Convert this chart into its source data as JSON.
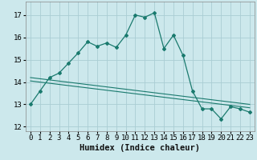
{
  "xlabel": "Humidex (Indice chaleur)",
  "background_color": "#cce8ec",
  "grid_color": "#aacdd4",
  "line_color": "#1a7a6e",
  "xlim": [
    -0.5,
    23.5
  ],
  "ylim": [
    11.8,
    17.6
  ],
  "yticks": [
    12,
    13,
    14,
    15,
    16,
    17
  ],
  "xticks": [
    0,
    1,
    2,
    3,
    4,
    5,
    6,
    7,
    8,
    9,
    10,
    11,
    12,
    13,
    14,
    15,
    16,
    17,
    18,
    19,
    20,
    21,
    22,
    23
  ],
  "curve1_x": [
    0,
    1,
    2,
    3,
    4,
    5,
    6,
    7,
    8,
    9,
    10,
    11,
    12,
    13,
    14,
    15,
    16,
    17,
    18,
    19,
    20,
    21,
    22,
    23
  ],
  "curve1_y": [
    13.0,
    13.6,
    14.2,
    14.4,
    14.85,
    15.3,
    15.8,
    15.6,
    15.75,
    15.55,
    16.1,
    17.0,
    16.9,
    17.1,
    15.5,
    16.1,
    15.2,
    13.6,
    12.8,
    12.8,
    12.35,
    12.9,
    12.8,
    12.65
  ],
  "trend1_start": 14.2,
  "trend1_end": 13.0,
  "trend2_start": 14.05,
  "trend2_end": 12.85,
  "tick_fontsize": 6.5,
  "xlabel_fontsize": 7.5
}
